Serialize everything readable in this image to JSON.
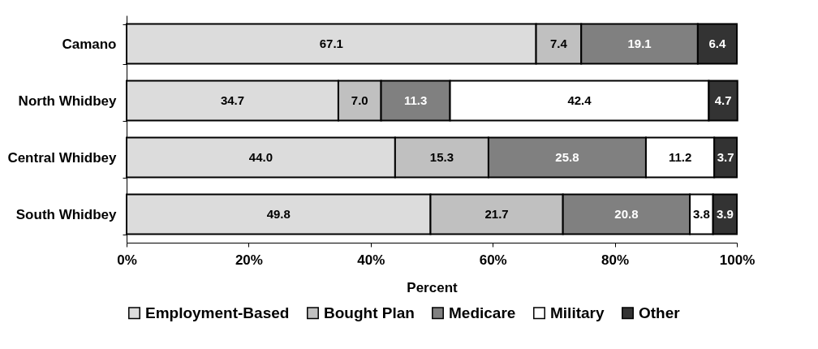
{
  "chart_data": {
    "type": "bar",
    "orientation": "horizontal",
    "stacked": true,
    "legend": "bottom",
    "grid": false,
    "xlabel": "Percent",
    "categories": [
      "Camano",
      "North Whidbey",
      "Central Whidbey",
      "South Whidbey"
    ],
    "xlim": [
      0,
      100
    ],
    "xticks": [
      {
        "value": 0,
        "label": "0%"
      },
      {
        "value": 20,
        "label": "20%"
      },
      {
        "value": 40,
        "label": "40%"
      },
      {
        "value": 60,
        "label": "60%"
      },
      {
        "value": 80,
        "label": "80%"
      },
      {
        "value": 100,
        "label": "100%"
      }
    ],
    "series": [
      {
        "name": "Employment-Based",
        "color": "#dcdcdc",
        "values": [
          67.1,
          34.7,
          44.0,
          49.8
        ],
        "value_labels": [
          "67.1",
          "34.7",
          "44.0",
          "49.8"
        ]
      },
      {
        "name": "Bought Plan",
        "color": "#c0c0c0",
        "values": [
          7.4,
          7.0,
          15.3,
          21.7
        ],
        "value_labels": [
          "7.4",
          "7.0",
          "15.3",
          "21.7"
        ]
      },
      {
        "name": "Medicare",
        "color": "#808080",
        "values": [
          19.1,
          11.3,
          25.8,
          20.8
        ],
        "value_labels": [
          "19.1",
          "11.3",
          "25.8",
          "20.8"
        ]
      },
      {
        "name": "Military",
        "color": "#ffffff",
        "values": [
          null,
          42.4,
          11.2,
          3.8
        ],
        "value_labels": [
          null,
          "42.4",
          "11.2",
          "3.8"
        ]
      },
      {
        "name": "Other",
        "color": "#333333",
        "values": [
          6.4,
          4.7,
          3.7,
          3.9
        ],
        "value_labels": [
          "6.4",
          "4.7",
          "3.7",
          "3.9"
        ]
      }
    ]
  }
}
